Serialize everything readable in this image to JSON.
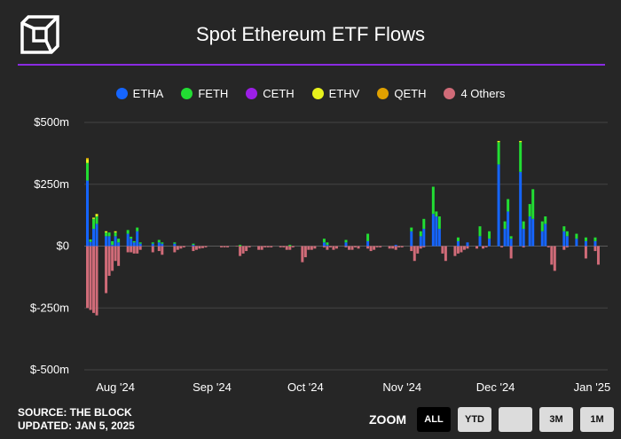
{
  "header": {
    "title": "Spot Ethereum ETF Flows"
  },
  "legend": [
    {
      "name": "ETHA",
      "color": "#1565ff"
    },
    {
      "name": "FETH",
      "color": "#22dd33"
    },
    {
      "name": "CETH",
      "color": "#9b1ee6"
    },
    {
      "name": "ETHV",
      "color": "#e8f21c"
    },
    {
      "name": "QETH",
      "color": "#e0a100"
    },
    {
      "name": "4 Others",
      "color": "#d06b78"
    }
  ],
  "footer": {
    "source": "SOURCE: THE BLOCK",
    "updated": "UPDATED: JAN 5, 2025"
  },
  "zoom": {
    "label": "ZOOM",
    "buttons": [
      {
        "label": "ALL",
        "active": true
      },
      {
        "label": "YTD",
        "active": false
      },
      {
        "label": "",
        "active": false
      },
      {
        "label": "3M",
        "active": false
      },
      {
        "label": "1M",
        "active": false
      }
    ]
  },
  "chart_data": {
    "type": "bar",
    "stacked": true,
    "yunit": "$m",
    "ylim": [
      -500,
      500
    ],
    "yticks": [
      {
        "value": 500,
        "label": "$500m"
      },
      {
        "value": 250,
        "label": "$250m"
      },
      {
        "value": 0,
        "label": "$0"
      },
      {
        "value": -250,
        "label": "$-250m"
      },
      {
        "value": -500,
        "label": "$-500m"
      }
    ],
    "xlim": [
      "2024-07-22",
      "2025-01-06"
    ],
    "xticks": [
      {
        "date": "2024-08-01",
        "label": "Aug '24"
      },
      {
        "date": "2024-09-01",
        "label": "Sep '24"
      },
      {
        "date": "2024-10-01",
        "label": "Oct '24"
      },
      {
        "date": "2024-11-01",
        "label": "Nov '24"
      },
      {
        "date": "2024-12-01",
        "label": "Dec '24"
      },
      {
        "date": "2025-01-01",
        "label": "Jan '25"
      }
    ],
    "grid": true,
    "legend_position": "top",
    "series": [
      {
        "name": "ETHA",
        "color": "#1565ff",
        "values": [
          [
            "2024-07-23",
            265
          ],
          [
            "2024-07-24",
            17
          ],
          [
            "2024-07-25",
            70
          ],
          [
            "2024-07-26",
            90
          ],
          [
            "2024-07-29",
            40
          ],
          [
            "2024-07-30",
            40
          ],
          [
            "2024-07-31",
            5
          ],
          [
            "2024-08-01",
            40
          ],
          [
            "2024-08-02",
            15
          ],
          [
            "2024-08-05",
            50
          ],
          [
            "2024-08-06",
            30
          ],
          [
            "2024-08-07",
            15
          ],
          [
            "2024-08-08",
            60
          ],
          [
            "2024-08-09",
            10
          ],
          [
            "2024-08-13",
            10
          ],
          [
            "2024-08-15",
            15
          ],
          [
            "2024-08-16",
            10
          ],
          [
            "2024-08-20",
            10
          ],
          [
            "2024-08-26",
            5
          ],
          [
            "2024-10-07",
            15
          ],
          [
            "2024-10-08",
            5
          ],
          [
            "2024-10-14",
            15
          ],
          [
            "2024-10-21",
            20
          ],
          [
            "2024-10-30",
            5
          ],
          [
            "2024-11-04",
            60
          ],
          [
            "2024-11-07",
            40
          ],
          [
            "2024-11-08",
            70
          ],
          [
            "2024-11-11",
            130
          ],
          [
            "2024-11-12",
            120
          ],
          [
            "2024-11-13",
            70
          ],
          [
            "2024-11-19",
            20
          ],
          [
            "2024-11-22",
            15
          ],
          [
            "2024-11-26",
            40
          ],
          [
            "2024-11-29",
            30
          ],
          [
            "2024-12-02",
            330
          ],
          [
            "2024-12-04",
            70
          ],
          [
            "2024-12-05",
            140
          ],
          [
            "2024-12-06",
            30
          ],
          [
            "2024-12-09",
            300
          ],
          [
            "2024-12-10",
            70
          ],
          [
            "2024-12-12",
            120
          ],
          [
            "2024-12-13",
            110
          ],
          [
            "2024-12-16",
            60
          ],
          [
            "2024-12-17",
            90
          ],
          [
            "2024-12-23",
            60
          ],
          [
            "2024-12-24",
            40
          ],
          [
            "2024-12-27",
            30
          ],
          [
            "2024-12-30",
            20
          ],
          [
            "2025-01-02",
            20
          ]
        ]
      },
      {
        "name": "FETH",
        "color": "#22dd33",
        "values": [
          [
            "2024-07-23",
            71
          ],
          [
            "2024-07-24",
            10
          ],
          [
            "2024-07-25",
            40
          ],
          [
            "2024-07-26",
            30
          ],
          [
            "2024-07-29",
            15
          ],
          [
            "2024-07-30",
            15
          ],
          [
            "2024-07-31",
            15
          ],
          [
            "2024-08-01",
            15
          ],
          [
            "2024-08-02",
            15
          ],
          [
            "2024-08-05",
            15
          ],
          [
            "2024-08-06",
            8
          ],
          [
            "2024-08-07",
            5
          ],
          [
            "2024-08-08",
            15
          ],
          [
            "2024-08-09",
            5
          ],
          [
            "2024-08-13",
            5
          ],
          [
            "2024-08-15",
            10
          ],
          [
            "2024-08-16",
            5
          ],
          [
            "2024-08-20",
            5
          ],
          [
            "2024-08-26",
            5
          ],
          [
            "2024-09-10",
            5
          ],
          [
            "2024-09-26",
            5
          ],
          [
            "2024-10-07",
            15
          ],
          [
            "2024-10-08",
            10
          ],
          [
            "2024-10-14",
            10
          ],
          [
            "2024-10-21",
            30
          ],
          [
            "2024-11-04",
            15
          ],
          [
            "2024-11-07",
            20
          ],
          [
            "2024-11-08",
            40
          ],
          [
            "2024-11-11",
            110
          ],
          [
            "2024-11-12",
            20
          ],
          [
            "2024-11-13",
            50
          ],
          [
            "2024-11-19",
            15
          ],
          [
            "2024-11-26",
            40
          ],
          [
            "2024-11-29",
            30
          ],
          [
            "2024-12-02",
            90
          ],
          [
            "2024-12-04",
            30
          ],
          [
            "2024-12-05",
            50
          ],
          [
            "2024-12-06",
            10
          ],
          [
            "2024-12-09",
            120
          ],
          [
            "2024-12-10",
            30
          ],
          [
            "2024-12-12",
            50
          ],
          [
            "2024-12-13",
            120
          ],
          [
            "2024-12-16",
            40
          ],
          [
            "2024-12-17",
            30
          ],
          [
            "2024-12-23",
            20
          ],
          [
            "2024-12-24",
            20
          ],
          [
            "2024-12-27",
            20
          ],
          [
            "2024-12-30",
            15
          ],
          [
            "2025-01-02",
            15
          ]
        ]
      },
      {
        "name": "CETH",
        "color": "#9b1ee6",
        "values": []
      },
      {
        "name": "ETHV",
        "color": "#e8f21c",
        "values": [
          [
            "2024-07-23",
            15
          ],
          [
            "2024-07-25",
            5
          ],
          [
            "2024-07-26",
            10
          ],
          [
            "2024-07-29",
            5
          ],
          [
            "2024-08-01",
            5
          ],
          [
            "2024-12-02",
            5
          ],
          [
            "2024-12-09",
            5
          ]
        ]
      },
      {
        "name": "QETH",
        "color": "#e0a100",
        "values": [
          [
            "2024-07-23",
            5
          ]
        ]
      },
      {
        "name": "4 Others",
        "color": "#d06b78",
        "values": [
          [
            "2024-07-23",
            -250
          ],
          [
            "2024-07-24",
            -258
          ],
          [
            "2024-07-25",
            -270
          ],
          [
            "2024-07-26",
            -280
          ],
          [
            "2024-07-29",
            -190
          ],
          [
            "2024-07-30",
            -120
          ],
          [
            "2024-07-31",
            -100
          ],
          [
            "2024-08-01",
            -60
          ],
          [
            "2024-08-02",
            -80
          ],
          [
            "2024-08-05",
            -25
          ],
          [
            "2024-08-06",
            -25
          ],
          [
            "2024-08-07",
            -30
          ],
          [
            "2024-08-08",
            -30
          ],
          [
            "2024-08-09",
            -15
          ],
          [
            "2024-08-13",
            -25
          ],
          [
            "2024-08-15",
            -20
          ],
          [
            "2024-08-16",
            -35
          ],
          [
            "2024-08-20",
            -25
          ],
          [
            "2024-08-21",
            -15
          ],
          [
            "2024-08-22",
            -10
          ],
          [
            "2024-08-23",
            -5
          ],
          [
            "2024-08-26",
            -20
          ],
          [
            "2024-08-27",
            -15
          ],
          [
            "2024-08-28",
            -10
          ],
          [
            "2024-08-29",
            -8
          ],
          [
            "2024-08-30",
            -5
          ],
          [
            "2024-09-04",
            -5
          ],
          [
            "2024-09-05",
            -5
          ],
          [
            "2024-09-06",
            -5
          ],
          [
            "2024-09-09",
            -2
          ],
          [
            "2024-09-10",
            -40
          ],
          [
            "2024-09-11",
            -30
          ],
          [
            "2024-09-12",
            -20
          ],
          [
            "2024-09-13",
            -5
          ],
          [
            "2024-09-16",
            -15
          ],
          [
            "2024-09-17",
            -15
          ],
          [
            "2024-09-18",
            -5
          ],
          [
            "2024-09-19",
            -5
          ],
          [
            "2024-09-20",
            -5
          ],
          [
            "2024-09-23",
            -5
          ],
          [
            "2024-09-24",
            -5
          ],
          [
            "2024-09-25",
            -15
          ],
          [
            "2024-09-26",
            -15
          ],
          [
            "2024-09-27",
            -5
          ],
          [
            "2024-09-30",
            -65
          ],
          [
            "2024-10-01",
            -45
          ],
          [
            "2024-10-02",
            -15
          ],
          [
            "2024-10-03",
            -15
          ],
          [
            "2024-10-04",
            -10
          ],
          [
            "2024-10-07",
            -5
          ],
          [
            "2024-10-08",
            -15
          ],
          [
            "2024-10-09",
            -5
          ],
          [
            "2024-10-10",
            -15
          ],
          [
            "2024-10-11",
            -10
          ],
          [
            "2024-10-14",
            -5
          ],
          [
            "2024-10-15",
            -15
          ],
          [
            "2024-10-16",
            -15
          ],
          [
            "2024-10-17",
            -5
          ],
          [
            "2024-10-18",
            -10
          ],
          [
            "2024-10-21",
            -10
          ],
          [
            "2024-10-22",
            -20
          ],
          [
            "2024-10-23",
            -15
          ],
          [
            "2024-10-24",
            -5
          ],
          [
            "2024-10-25",
            -5
          ],
          [
            "2024-10-28",
            -10
          ],
          [
            "2024-10-29",
            -10
          ],
          [
            "2024-10-30",
            -15
          ],
          [
            "2024-10-31",
            -5
          ],
          [
            "2024-11-01",
            -5
          ],
          [
            "2024-11-04",
            -20
          ],
          [
            "2024-11-05",
            -60
          ],
          [
            "2024-11-06",
            -30
          ],
          [
            "2024-11-07",
            -10
          ],
          [
            "2024-11-08",
            -5
          ],
          [
            "2024-11-14",
            -30
          ],
          [
            "2024-11-15",
            -60
          ],
          [
            "2024-11-18",
            -40
          ],
          [
            "2024-11-19",
            -30
          ],
          [
            "2024-11-20",
            -25
          ],
          [
            "2024-11-21",
            -15
          ],
          [
            "2024-11-22",
            -10
          ],
          [
            "2024-11-25",
            -10
          ],
          [
            "2024-11-27",
            -10
          ],
          [
            "2024-11-28",
            -5
          ],
          [
            "2024-12-03",
            -5
          ],
          [
            "2024-12-06",
            -50
          ],
          [
            "2024-12-10",
            -5
          ],
          [
            "2024-12-18",
            -5
          ],
          [
            "2024-12-19",
            -75
          ],
          [
            "2024-12-20",
            -100
          ],
          [
            "2024-12-23",
            -15
          ],
          [
            "2024-12-24",
            -5
          ],
          [
            "2024-12-30",
            -50
          ],
          [
            "2025-01-02",
            -20
          ],
          [
            "2025-01-03",
            -75
          ]
        ]
      }
    ]
  }
}
